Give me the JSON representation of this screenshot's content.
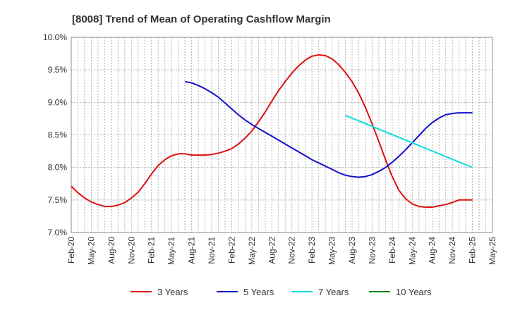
{
  "chart_data": {
    "type": "line",
    "title": "[8008]  Trend of Mean of Operating Cashflow Margin",
    "xlabel": "",
    "ylabel": "",
    "x_tick_labels": [
      "Feb-20",
      "May-20",
      "Aug-20",
      "Nov-20",
      "Feb-21",
      "May-21",
      "Aug-21",
      "Nov-21",
      "Feb-22",
      "May-22",
      "Aug-22",
      "Nov-22",
      "Feb-23",
      "May-23",
      "Aug-23",
      "Nov-23",
      "Feb-24",
      "May-24",
      "Aug-24",
      "Nov-24",
      "Feb-25",
      "May-25"
    ],
    "y_tick_labels": [
      "7.0%",
      "7.5%",
      "8.0%",
      "8.5%",
      "9.0%",
      "9.5%",
      "10.0%"
    ],
    "ylim": [
      7.0,
      10.0
    ],
    "grid": true,
    "legend_position": "bottom",
    "series": [
      {
        "name": "3 Years",
        "color": "#dd1111",
        "x": [
          "Feb-20",
          "Mar-20",
          "Apr-20",
          "May-20",
          "Jun-20",
          "Jul-20",
          "Aug-20",
          "Sep-20",
          "Oct-20",
          "Nov-20",
          "Dec-20",
          "Jan-21",
          "Feb-21",
          "Mar-21",
          "Apr-21",
          "May-21",
          "Jun-21",
          "Jul-21",
          "Aug-21",
          "Sep-21",
          "Oct-21",
          "Nov-21",
          "Dec-21",
          "Jan-22",
          "Feb-22",
          "Mar-22",
          "Apr-22",
          "May-22",
          "Jun-22",
          "Jul-22",
          "Aug-22",
          "Sep-22",
          "Oct-22",
          "Nov-22",
          "Dec-22",
          "Jan-23",
          "Feb-23",
          "Mar-23",
          "Apr-23",
          "May-23",
          "Jun-23",
          "Jul-23",
          "Aug-23",
          "Sep-23",
          "Oct-23",
          "Nov-23",
          "Dec-23",
          "Jan-24",
          "Feb-24",
          "Mar-24",
          "Apr-24",
          "May-24",
          "Jun-24",
          "Jul-24",
          "Aug-24",
          "Sep-24",
          "Oct-24",
          "Nov-24",
          "Dec-24",
          "Jan-25",
          "Feb-25"
        ],
        "values": [
          7.71,
          7.61,
          7.53,
          7.47,
          7.43,
          7.4,
          7.4,
          7.42,
          7.46,
          7.53,
          7.62,
          7.75,
          7.9,
          8.03,
          8.12,
          8.18,
          8.21,
          8.21,
          8.19,
          8.19,
          8.19,
          8.2,
          8.22,
          8.25,
          8.29,
          8.36,
          8.45,
          8.56,
          8.7,
          8.85,
          9.02,
          9.18,
          9.32,
          9.45,
          9.56,
          9.65,
          9.71,
          9.73,
          9.72,
          9.67,
          9.58,
          9.46,
          9.32,
          9.14,
          8.92,
          8.67,
          8.4,
          8.12,
          7.86,
          7.65,
          7.52,
          7.44,
          7.4,
          7.39,
          7.39,
          7.41,
          7.43,
          7.46,
          7.5,
          7.5,
          7.5
        ]
      },
      {
        "name": "5 Years",
        "color": "#1111cc",
        "x": [
          "Feb-21",
          "Mar-21",
          "Apr-21",
          "May-21",
          "Jun-21",
          "Jul-21",
          "Aug-21",
          "Sep-21",
          "Oct-21",
          "Nov-21",
          "Dec-21",
          "Jan-22",
          "Feb-22",
          "Mar-22",
          "Apr-22",
          "May-22",
          "Jun-22",
          "Jul-22",
          "Aug-22",
          "Sep-22",
          "Oct-22",
          "Nov-22",
          "Dec-22",
          "Jan-23",
          "Feb-23",
          "Mar-23",
          "Apr-23",
          "May-23",
          "Jun-23",
          "Jul-23",
          "Aug-23",
          "Sep-23",
          "Oct-23",
          "Nov-23",
          "Dec-23",
          "Jan-24",
          "Feb-24",
          "Mar-24",
          "Apr-24",
          "May-24",
          "Jun-24",
          "Jul-24",
          "Aug-24",
          "Sep-24",
          "Oct-24",
          "Nov-24",
          "Dec-24",
          "Jan-25",
          "Feb-25"
        ],
        "values": [
          null,
          null,
          null,
          null,
          null,
          9.32,
          9.3,
          9.26,
          9.21,
          9.15,
          9.08,
          8.99,
          8.9,
          8.81,
          8.73,
          8.66,
          8.6,
          8.54,
          8.48,
          8.42,
          8.36,
          8.3,
          8.24,
          8.18,
          8.12,
          8.07,
          8.02,
          7.97,
          7.92,
          7.88,
          7.86,
          7.85,
          7.86,
          7.89,
          7.94,
          8.0,
          8.08,
          8.17,
          8.27,
          8.38,
          8.49,
          8.6,
          8.69,
          8.76,
          8.81,
          8.83,
          8.84,
          8.84,
          8.84
        ]
      },
      {
        "name": "7 Years",
        "color": "#11dddd",
        "x": [
          "Jul-23",
          "Feb-25"
        ],
        "values": [
          8.8,
          8.0
        ]
      },
      {
        "name": "10 Years",
        "color": "#118811",
        "x": [],
        "values": []
      }
    ]
  }
}
